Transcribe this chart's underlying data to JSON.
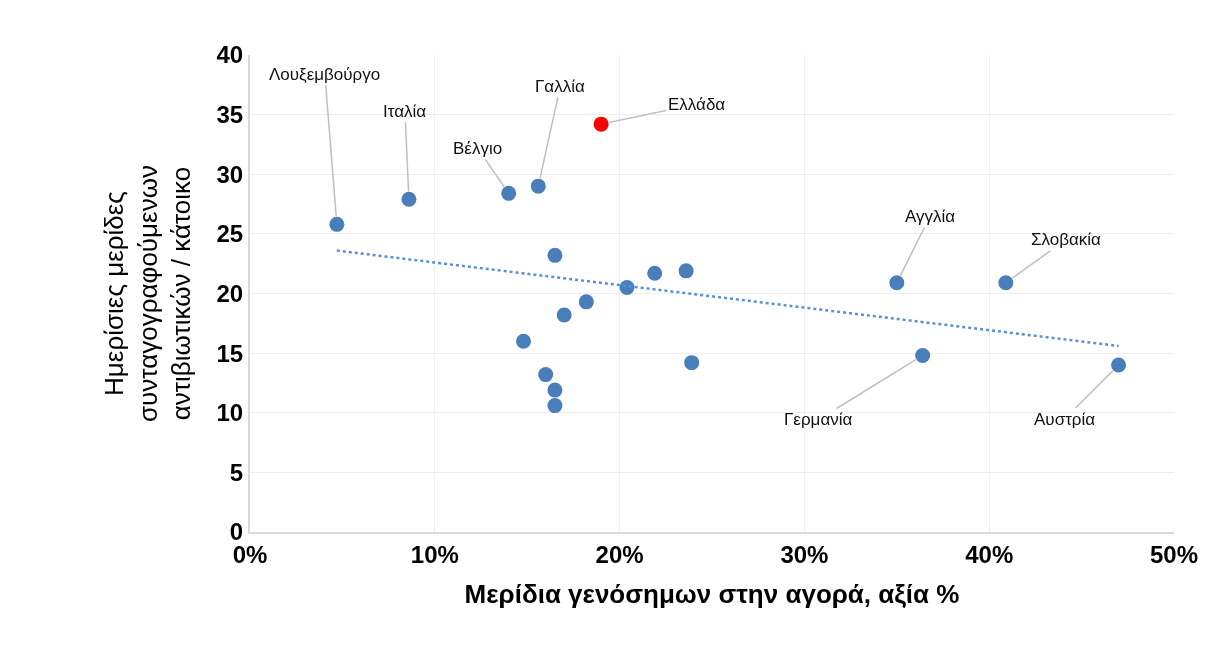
{
  "chart_data": {
    "type": "scatter",
    "xlabel": "Μερίδια γενόσημων στην αγορά, αξία %",
    "ylabel": "Ημερίσιες μερίδες\nσυνταγογραφούμενων\nαντιβιωτικών / κάτοικο",
    "xlim": [
      0,
      50
    ],
    "xticks": [
      {
        "value": 0,
        "label": "0%"
      },
      {
        "value": 10,
        "label": "10%"
      },
      {
        "value": 20,
        "label": "20%"
      },
      {
        "value": 30,
        "label": "30%"
      },
      {
        "value": 40,
        "label": "40%"
      },
      {
        "value": 50,
        "label": "50%"
      }
    ],
    "ylim": [
      0,
      40
    ],
    "yticks": [
      0,
      5,
      10,
      15,
      20,
      25,
      30,
      35,
      40
    ],
    "grid": true,
    "series": [
      {
        "marker": "circle",
        "x": [
          4.7,
          8.6,
          14.0,
          15.6,
          19.0,
          16.5,
          14.8,
          17.0,
          18.2,
          20.4,
          21.9,
          23.6,
          23.9,
          16.0,
          16.5,
          16.5,
          35.0,
          40.9,
          36.4,
          47.0
        ],
        "values": [
          25.8,
          27.9,
          28.4,
          29.0,
          34.2,
          23.2,
          16.0,
          18.2,
          19.3,
          20.5,
          21.7,
          21.9,
          14.2,
          13.2,
          11.9,
          10.6,
          20.9,
          20.9,
          14.8,
          14.0
        ],
        "colors": [
          "#4a7ebb",
          "#4a7ebb",
          "#4a7ebb",
          "#4a7ebb",
          "#ff0000",
          "#4a7ebb",
          "#4a7ebb",
          "#4a7ebb",
          "#4a7ebb",
          "#4a7ebb",
          "#4a7ebb",
          "#4a7ebb",
          "#4a7ebb",
          "#4a7ebb",
          "#4a7ebb",
          "#4a7ebb",
          "#4a7ebb",
          "#4a7ebb",
          "#4a7ebb",
          "#4a7ebb"
        ]
      },
      {
        "type": "line",
        "color": "#5b8fd6",
        "line_style": "dotted",
        "x": [
          4.7,
          47.0
        ],
        "values": [
          23.6,
          15.6
        ]
      }
    ],
    "annotations": [
      {
        "text": "Λουξεμβούργο",
        "x": 4.7,
        "y": 25.8
      },
      {
        "text": "Ιταλία",
        "x": 8.6,
        "y": 27.9
      },
      {
        "text": "Βέλγιο",
        "x": 14.0,
        "y": 28.4
      },
      {
        "text": "Γαλλία",
        "x": 15.6,
        "y": 29.0
      },
      {
        "text": "Ελλάδα",
        "x": 19.0,
        "y": 34.2
      },
      {
        "text": "Αγγλία",
        "x": 35.0,
        "y": 20.9
      },
      {
        "text": "Σλοβακία",
        "x": 40.9,
        "y": 20.9
      },
      {
        "text": "Γερμανία",
        "x": 36.4,
        "y": 14.8
      },
      {
        "text": "Αυστρία",
        "x": 47.0,
        "y": 14.0
      }
    ]
  }
}
